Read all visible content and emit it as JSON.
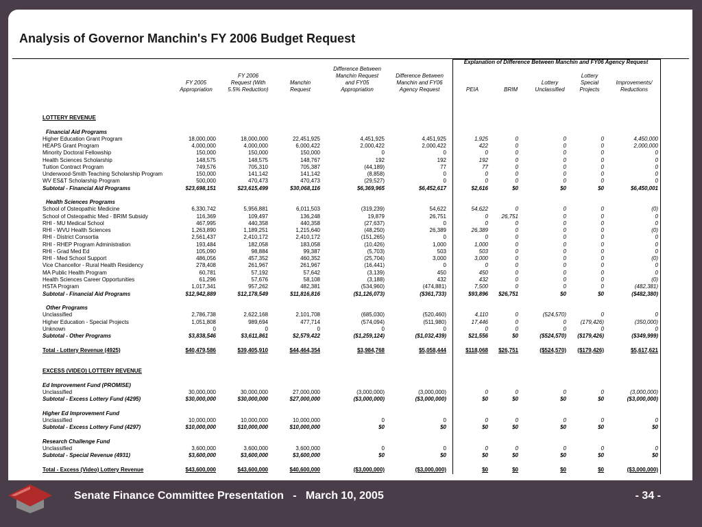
{
  "title": "Analysis of Governor Manchin's FY 2006 Budget Request",
  "header": {
    "explanation": "Explanation of Difference Between Manchin and FY06 Agency Request",
    "columns": [
      [
        "FY 2005",
        "Appropriation"
      ],
      [
        "FY 2006",
        "Request (With",
        "5.5% Reduction)"
      ],
      [
        "Manchin",
        "Request"
      ],
      [
        "Difference Between",
        "Manchin Request",
        "and  FY05",
        "Appropriation"
      ],
      [
        "Difference Between",
        "Manchin and  FY06",
        "Agency Request"
      ],
      [
        "PEIA"
      ],
      [
        "BRIM"
      ],
      [
        "Lottery",
        "Unclassified"
      ],
      [
        "Lottery",
        "Special",
        "Projects"
      ],
      [
        "Improvements/",
        "Reductions"
      ]
    ]
  },
  "sections": [
    {
      "title": "LOTTERY REVENUE",
      "groups": [
        {
          "title": "Financial Aid Programs",
          "rows": [
            {
              "label": "Higher Education Grant Program",
              "values": [
                "18,000,000",
                "18,000,000",
                "22,451,925",
                "4,451,925",
                "4,451,925",
                "1,925",
                "0",
                "0",
                "0",
                "4,450,000"
              ]
            },
            {
              "label": "HEAPS Grant Program",
              "values": [
                "4,000,000",
                "4,000,000",
                "6,000,422",
                "2,000,422",
                "2,000,422",
                "422",
                "0",
                "0",
                "0",
                "2,000,000"
              ]
            },
            {
              "label": "Minority Doctoral Fellowship",
              "values": [
                "150,000",
                "150,000",
                "150,000",
                "0",
                "0",
                "0",
                "0",
                "0",
                "0",
                "0"
              ]
            },
            {
              "label": "Health Sciences Scholarship",
              "values": [
                "148,575",
                "148,575",
                "148,767",
                "192",
                "192",
                "192",
                "0",
                "0",
                "0",
                "0"
              ]
            },
            {
              "label": "Tuition Contract Program",
              "values": [
                "749,576",
                "705,310",
                "705,387",
                "(44,189)",
                "77",
                "77",
                "0",
                "0",
                "0",
                "0"
              ]
            },
            {
              "label": "Underwood-Smith Teaching Scholarship Program",
              "values": [
                "150,000",
                "141,142",
                "141,142",
                "(8,858)",
                "0",
                "0",
                "0",
                "0",
                "0",
                "0"
              ]
            },
            {
              "label": "WV ES&T Scholarship Program",
              "values": [
                "500,000",
                "470,473",
                "470,473",
                "(29,527)",
                "0",
                "0",
                "0",
                "0",
                "0",
                "0"
              ]
            }
          ],
          "subtotal": {
            "label": "Subtotal - Financial Aid Programs",
            "values": [
              "$23,698,151",
              "$23,615,499",
              "$30,068,116",
              "$6,369,965",
              "$6,452,617",
              "$2,616",
              "$0",
              "$0",
              "$0",
              "$6,450,001"
            ]
          }
        },
        {
          "title": "Health Sciences Programs",
          "rows": [
            {
              "label": "School of Osteopathic Medicine",
              "values": [
                "6,330,742",
                "5,956,881",
                "6,011,503",
                "(319,239)",
                "54,622",
                "54,622",
                "0",
                "0",
                "0",
                "(0)"
              ]
            },
            {
              "label": "School of Osteopathic Med - BRIM Subsidy",
              "values": [
                "116,369",
                "109,497",
                "136,248",
                "19,879",
                "26,751",
                "0",
                "26,751",
                "0",
                "0",
                "0"
              ]
            },
            {
              "label": "RHI - MU Medical School",
              "values": [
                "467,995",
                "440,358",
                "440,358",
                "(27,637)",
                "0",
                "0",
                "0",
                "0",
                "0",
                "0"
              ]
            },
            {
              "label": "RHI - WVU Health Sciences",
              "values": [
                "1,263,890",
                "1,189,251",
                "1,215,640",
                "(48,250)",
                "26,389",
                "26,389",
                "0",
                "0",
                "0",
                "(0)"
              ]
            },
            {
              "label": "RHI - District Consortia",
              "values": [
                "2,561,437",
                "2,410,172",
                "2,410,172",
                "(151,265)",
                "0",
                "0",
                "0",
                "0",
                "0",
                "0"
              ]
            },
            {
              "label": "RHI - RHEP Program Administration",
              "values": [
                "193,484",
                "182,058",
                "183,058",
                "(10,426)",
                "1,000",
                "1,000",
                "0",
                "0",
                "0",
                "0"
              ]
            },
            {
              "label": "RHI - Grad Med Ed",
              "values": [
                "105,090",
                "98,884",
                "99,387",
                "(5,703)",
                "503",
                "503",
                "0",
                "0",
                "0",
                "0"
              ]
            },
            {
              "label": "RHI - Med School Support",
              "values": [
                "486,056",
                "457,352",
                "460,352",
                "(25,704)",
                "3,000",
                "3,000",
                "0",
                "0",
                "0",
                "(0)"
              ]
            },
            {
              "label": "Vice Chancellor - Rural Health Residency",
              "values": [
                "278,408",
                "261,967",
                "261,967",
                "(16,441)",
                "0",
                "0",
                "0",
                "0",
                "0",
                "0"
              ]
            },
            {
              "label": "MA Public Health Program",
              "values": [
                "60,781",
                "57,192",
                "57,642",
                "(3,139)",
                "450",
                "450",
                "0",
                "0",
                "0",
                "0"
              ]
            },
            {
              "label": "Health Sciences Career Opportunities",
              "values": [
                "61,296",
                "57,676",
                "58,108",
                "(3,188)",
                "432",
                "432",
                "0",
                "0",
                "0",
                "(0)"
              ]
            },
            {
              "label": "HSTA Program",
              "values": [
                "1,017,341",
                "957,262",
                "482,381",
                "(534,960)",
                "(474,881)",
                "7,500",
                "0",
                "0",
                "0",
                "(482,381)"
              ]
            }
          ],
          "subtotal": {
            "label": "Subtotal - Financial Aid Programs",
            "values": [
              "$12,942,889",
              "$12,178,549",
              "$11,816,816",
              "($1,126,073)",
              "($361,733)",
              "$93,896",
              "$26,751",
              "$0",
              "$0",
              "($482,380)"
            ]
          }
        },
        {
          "title": "Other Programs",
          "rows": [
            {
              "label": "Unclassified",
              "values": [
                "2,786,738",
                "2,622,168",
                "2,101,708",
                "(685,030)",
                "(520,460)",
                "4,110",
                "0",
                "(524,570)",
                "0",
                "0"
              ]
            },
            {
              "label": "Higher Education - Special Projects",
              "values": [
                "1,051,808",
                "989,694",
                "477,714",
                "(574,094)",
                "(511,980)",
                "17,446",
                "0",
                "0",
                "(179,426)",
                "(350,000)"
              ]
            },
            {
              "label": "Unknown",
              "values": [
                "0",
                "0",
                "0",
                "0",
                "0",
                "0",
                "0",
                "0",
                "0",
                "0"
              ]
            }
          ],
          "subtotal": {
            "label": "Subtotal - Other Programs",
            "values": [
              "$3,838,546",
              "$3,611,861",
              "$2,579,422",
              "($1,259,124)",
              "($1,032,439)",
              "$21,556",
              "$0",
              "($524,570)",
              "($179,426)",
              "($349,999)"
            ]
          }
        }
      ],
      "total": {
        "label": "Total - Lottery Revenue (4925)",
        "values": [
          "$40,479,586",
          "$39,405,910",
          "$44,464,354",
          "$3,984,768",
          "$5,058,444",
          "$118,068",
          "$26,751",
          "($524,570)",
          "($179,426)",
          "$5,617,621"
        ]
      }
    },
    {
      "title": "EXCESS (VIDEO) LOTTERY REVENUE",
      "groups": [
        {
          "title": "Ed Improvement Fund (PROMISE)",
          "rows": [
            {
              "label": "Unclassified",
              "values": [
                "30,000,000",
                "30,000,000",
                "27,000,000",
                "(3,000,000)",
                "(3,000,000)",
                "0",
                "0",
                "0",
                "0",
                "(3,000,000)"
              ]
            }
          ],
          "subtotal": {
            "label": "Subtotal - Excess Lottery Fund (4295)",
            "values": [
              "$30,000,000",
              "$30,000,000",
              "$27,000,000",
              "($3,000,000)",
              "($3,000,000)",
              "$0",
              "$0",
              "$0",
              "$0",
              "($3,000,000)"
            ]
          }
        },
        {
          "title": "Higher Ed Improvement Fund",
          "rows": [
            {
              "label": "Unclassified",
              "values": [
                "10,000,000",
                "10,000,000",
                "10,000,000",
                "0",
                "0",
                "0",
                "0",
                "0",
                "0",
                "0"
              ]
            }
          ],
          "subtotal": {
            "label": "Subtotal - Excess Lottery Fund (4297)",
            "values": [
              "$10,000,000",
              "$10,000,000",
              "$10,000,000",
              "$0",
              "$0",
              "$0",
              "$0",
              "$0",
              "$0",
              "$0"
            ]
          }
        },
        {
          "title": "Research Challenge Fund",
          "rows": [
            {
              "label": "Unclassified",
              "values": [
                "3,600,000",
                "3,600,000",
                "3,600,000",
                "0",
                "0",
                "0",
                "0",
                "0",
                "0",
                "0"
              ]
            }
          ],
          "subtotal": {
            "label": "Subtotal - Special Revenue (4931)",
            "values": [
              "$3,600,000",
              "$3,600,000",
              "$3,600,000",
              "$0",
              "$0",
              "$0",
              "$0",
              "$0",
              "$0",
              "$0"
            ]
          }
        }
      ],
      "total": {
        "label": "Total - Excess (Video) Lottery Revenue",
        "values": [
          "$43,600,000",
          "$43,600,000",
          "$40,600,000",
          "($3,000,000)",
          "($3,000,000)",
          "$0",
          "$0",
          "$0",
          "$0",
          "($3,000,000)"
        ]
      }
    }
  ],
  "footer": {
    "text": "Senate Finance Committee Presentation   -   March 10, 2005",
    "page": "- 34 -"
  }
}
